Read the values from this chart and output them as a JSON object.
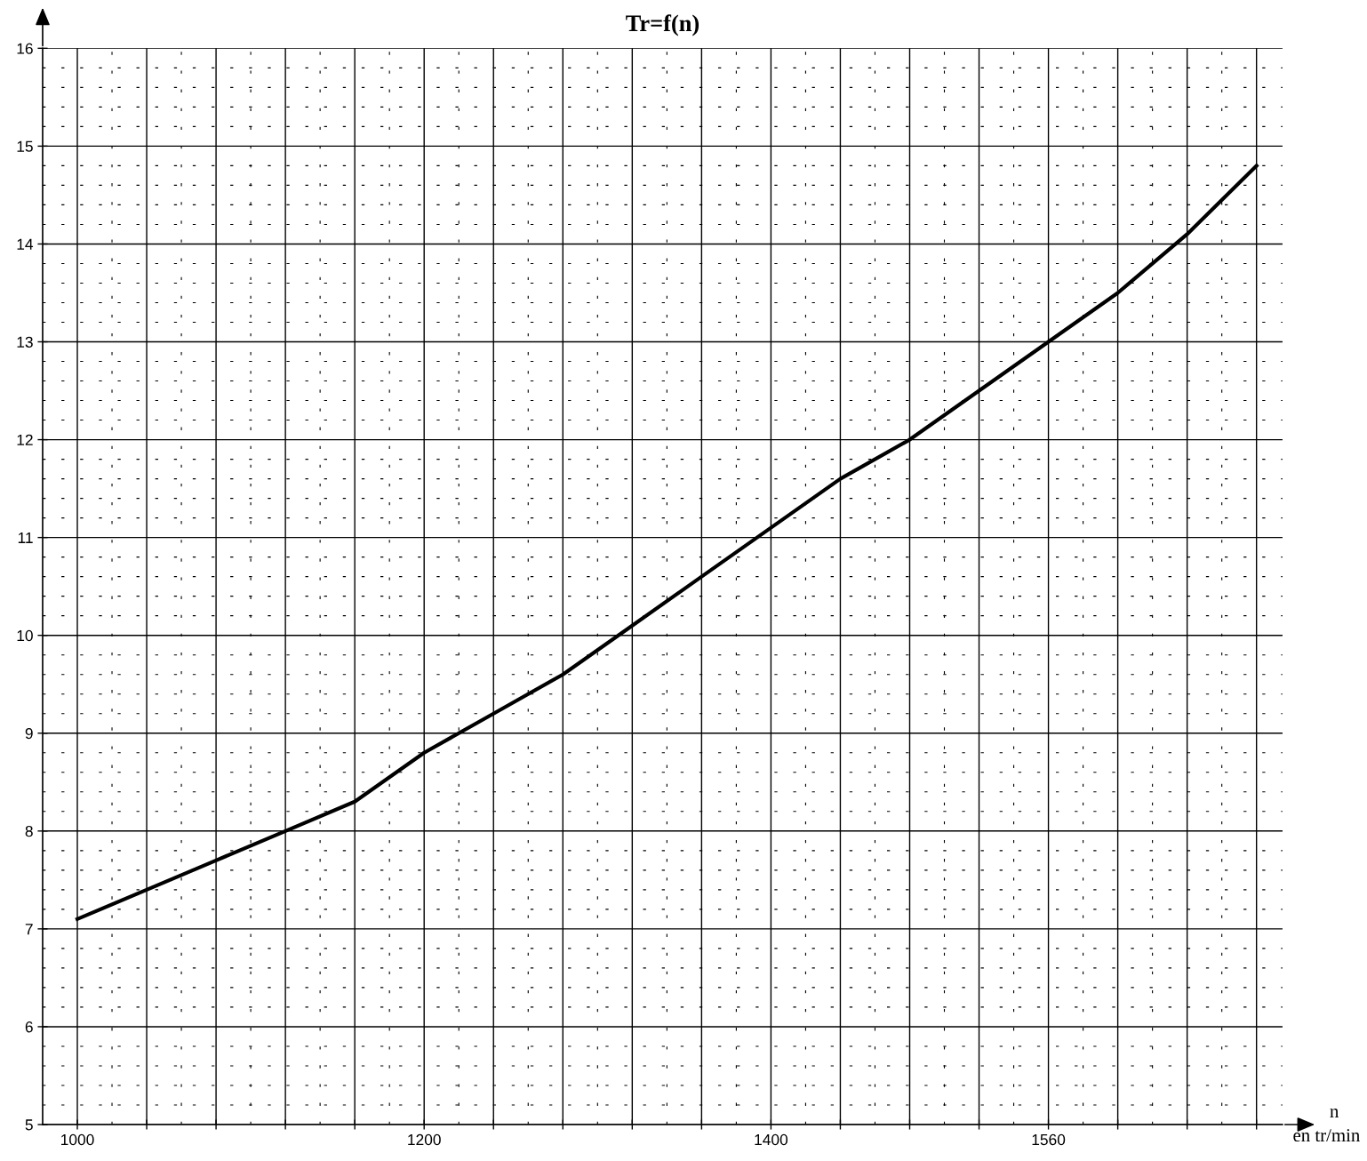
{
  "chart_data": {
    "type": "line",
    "title": "Tr=f(n)",
    "xlabel": "n",
    "annotations": [
      "en tr/min"
    ],
    "x": [
      1000,
      1040,
      1080,
      1120,
      1160,
      1200,
      1240,
      1280,
      1320,
      1360,
      1400,
      1440,
      1480,
      1520,
      1560,
      1600,
      1640,
      1680
    ],
    "series": [
      {
        "color": "#000000",
        "values": [
          7.1,
          7.4,
          7.7,
          8.0,
          8.3,
          8.8,
          9.2,
          9.6,
          10.1,
          10.6,
          11.1,
          11.6,
          12.0,
          12.5,
          13.0,
          13.5,
          14.1,
          14.8
        ]
      }
    ],
    "xlim": [
      980,
      1695
    ],
    "ylim": [
      5,
      16
    ],
    "xticks": [
      1000,
      {
        "value": 1040,
        "label": null
      },
      {
        "value": 1080,
        "label": null
      },
      {
        "value": 1120,
        "label": null
      },
      {
        "value": 1160,
        "label": null
      },
      1200,
      {
        "value": 1240,
        "label": null
      },
      {
        "value": 1280,
        "label": null
      },
      {
        "value": 1320,
        "label": null
      },
      {
        "value": 1360,
        "label": null
      },
      1400,
      {
        "value": 1440,
        "label": null
      },
      {
        "value": 1480,
        "label": null
      },
      {
        "value": 1520,
        "label": null
      },
      1560,
      {
        "value": 1600,
        "label": null
      },
      {
        "value": 1640,
        "label": null
      },
      {
        "value": 1680,
        "label": null
      }
    ],
    "yticks": [
      5,
      6,
      7,
      8,
      9,
      10,
      11,
      12,
      13,
      14,
      15,
      16
    ],
    "grid": true,
    "marker": "none",
    "line_style": "solid"
  }
}
